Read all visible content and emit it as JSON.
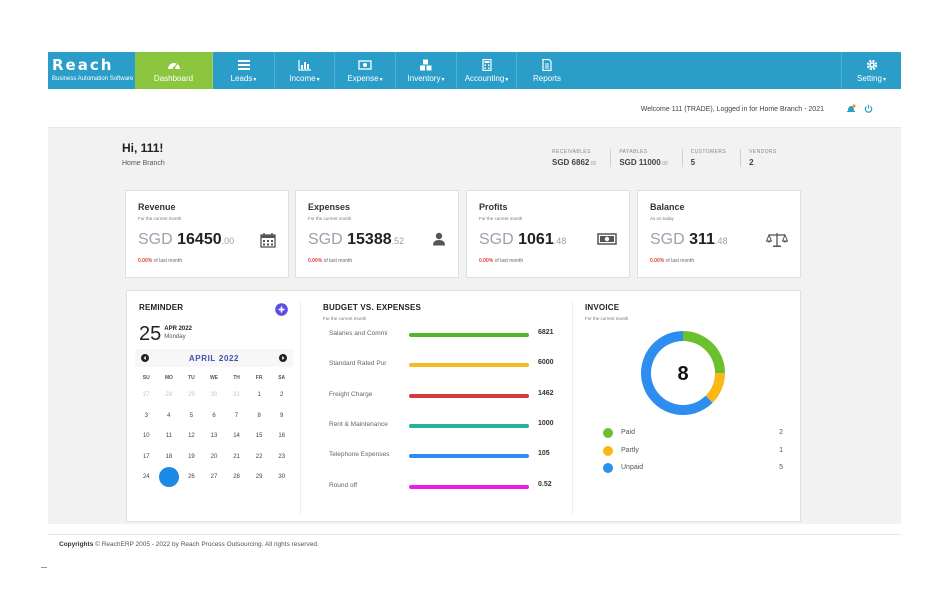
{
  "brand": {
    "logo_text": "Reach",
    "tagline": "Business Automation Software"
  },
  "nav": [
    {
      "label": "Dashboard",
      "icon": "dashboard-icon",
      "caret": ""
    },
    {
      "label": "Leads",
      "icon": "list-icon",
      "caret": "▾"
    },
    {
      "label": "Income",
      "icon": "bar-chart-icon",
      "caret": "▾"
    },
    {
      "label": "Expense",
      "icon": "money-icon",
      "caret": "▾"
    },
    {
      "label": "Inventory",
      "icon": "cubes-icon",
      "caret": "▾"
    },
    {
      "label": "Accounting",
      "icon": "calculator-icon",
      "caret": "▾"
    },
    {
      "label": "Reports",
      "icon": "file-icon",
      "caret": ""
    }
  ],
  "setting": {
    "label": "Setting",
    "caret": "▾",
    "icon": "gear-icon"
  },
  "welcome": "Welcome 111 (TRADE), Logged in for Home Branch - 2021",
  "greeting": {
    "title": "Hi, 111!",
    "branch": "Home Branch"
  },
  "stats": [
    {
      "label": "RECEIVABLES",
      "value": "SGD 6862",
      "cents": ".00"
    },
    {
      "label": "PAYABLES",
      "value": "SGD 11000",
      "cents": ".00"
    },
    {
      "label": "CUSTOMERS",
      "value": "5",
      "cents": ""
    },
    {
      "label": "VENDORS",
      "value": "2",
      "cents": ""
    }
  ],
  "cards": [
    {
      "title": "Revenue",
      "subtitle": "For the current month",
      "currency": "SGD ",
      "amount": "16450",
      "cents": ".00",
      "pct": "0.00%",
      "pct_text": " of last month",
      "icon": "calendar-icon"
    },
    {
      "title": "Expenses",
      "subtitle": "For the current month",
      "currency": "SGD ",
      "amount": "15388",
      "cents": ".52",
      "pct": "0.00%",
      "pct_text": " of last month",
      "icon": "user-icon"
    },
    {
      "title": "Profits",
      "subtitle": "For the current month",
      "currency": "SGD ",
      "amount": "1061",
      "cents": ".48",
      "pct": "0.00%",
      "pct_text": " of last month",
      "icon": "money-icon"
    },
    {
      "title": "Balance",
      "subtitle": "As on today",
      "currency": "SGD ",
      "amount": "311",
      "cents": ".48",
      "pct": "0.00%",
      "pct_text": " of last month",
      "icon": "scale-icon"
    }
  ],
  "reminder": {
    "title": "REMINDER",
    "day": "25",
    "month_year": "APR 2022",
    "weekday": "Monday",
    "calendar_month": "APRIL",
    "calendar_year": "2022",
    "dow": [
      "SU",
      "MO",
      "TU",
      "WE",
      "TH",
      "FR",
      "SA"
    ],
    "days": [
      [
        "27",
        "28",
        "29",
        "30",
        "31",
        "1",
        "2"
      ],
      [
        "3",
        "4",
        "5",
        "6",
        "7",
        "8",
        "9"
      ],
      [
        "10",
        "11",
        "12",
        "13",
        "14",
        "15",
        "16"
      ],
      [
        "17",
        "18",
        "19",
        "20",
        "21",
        "22",
        "23"
      ],
      [
        "24",
        "25",
        "26",
        "27",
        "28",
        "29",
        "30"
      ]
    ]
  },
  "budget": {
    "title": "BUDGET VS. EXPENSES",
    "subtitle": "For the current month",
    "rows": [
      {
        "name": "Salaries and Commi",
        "value": "6821",
        "color": "#52b52b"
      },
      {
        "name": "Standard Rated Pur",
        "value": "6000",
        "color": "#f7b924"
      },
      {
        "name": "Freight Charge",
        "value": "1462",
        "color": "#d9383a"
      },
      {
        "name": "Rent & Maintenance",
        "value": "1000",
        "color": "#26b39a"
      },
      {
        "name": "Telephone Expenses",
        "value": "105",
        "color": "#2f8cf0"
      },
      {
        "name": "Round off",
        "value": "0.52",
        "color": "#ee1be6"
      }
    ]
  },
  "invoice": {
    "title": "INVOICE",
    "subtitle": "For the current month",
    "total": "8",
    "items": [
      {
        "name": "Paid",
        "count": "2",
        "color": "#6cc02d"
      },
      {
        "name": "Partly",
        "count": "1",
        "color": "#f9b815"
      },
      {
        "name": "Unpaid",
        "count": "5",
        "color": "#2e8ef0"
      }
    ]
  },
  "footer": {
    "bold": "Copyrights",
    "text": " © ReachERP 2005 - 2022 by Reach Process Outsourcing. All rights reserved."
  }
}
